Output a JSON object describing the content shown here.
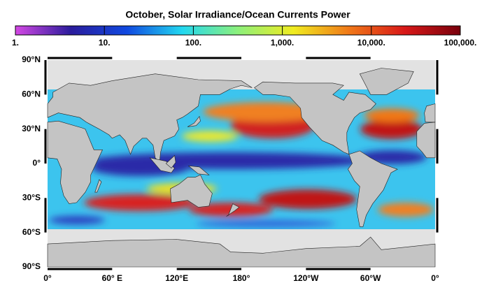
{
  "title": "October, Solar Irradiance/Ocean Currents Power",
  "colorbar": {
    "scale": "log",
    "lim": [
      1,
      100000
    ],
    "ticks": [
      {
        "value": 1,
        "label": "1."
      },
      {
        "value": 10,
        "label": "10."
      },
      {
        "value": 100,
        "label": "100."
      },
      {
        "value": 1000,
        "label": "1,000."
      },
      {
        "value": 10000,
        "label": "10,000."
      },
      {
        "value": 100000,
        "label": "100,000."
      }
    ],
    "colors": [
      "#d448e4",
      "#2a1c9c",
      "#1048e0",
      "#22d8f0",
      "#8cf07c",
      "#f0ec20",
      "#f07818",
      "#d81818",
      "#78000c"
    ]
  },
  "lat_labels": [
    "90°N",
    "60°N",
    "30°N",
    "0°",
    "30°S",
    "60°S",
    "90°S"
  ],
  "lon_labels": [
    "0°",
    "60° E",
    "120°E",
    "180°",
    "120°W",
    "60°W",
    "0°"
  ]
}
